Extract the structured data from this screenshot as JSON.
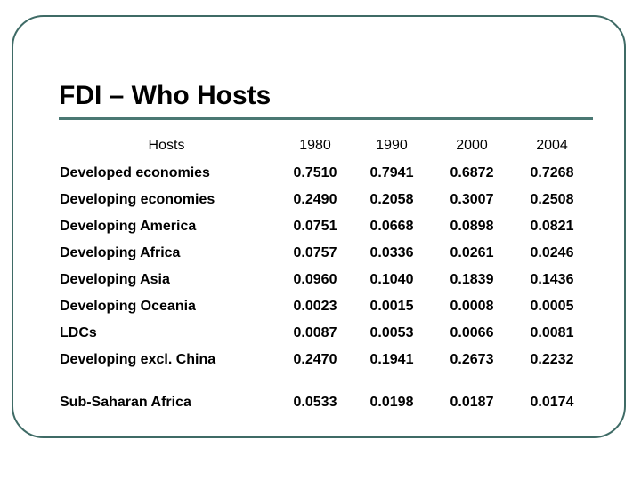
{
  "slide": {
    "title": "FDI – Who Hosts"
  },
  "table": {
    "header": [
      "Hosts",
      "1980",
      "1990",
      "2000",
      "2004"
    ],
    "rows": [
      {
        "label": "Developed economies",
        "values": [
          "0.7510",
          "0.7941",
          "0.6872",
          "0.7268"
        ]
      },
      {
        "label": "Developing economies",
        "values": [
          "0.2490",
          "0.2058",
          "0.3007",
          "0.2508"
        ]
      },
      {
        "label": "Developing America",
        "values": [
          "0.0751",
          "0.0668",
          "0.0898",
          "0.0821"
        ]
      },
      {
        "label": "Developing Africa",
        "values": [
          "0.0757",
          "0.0336",
          "0.0261",
          "0.0246"
        ]
      },
      {
        "label": "Developing Asia",
        "values": [
          "0.0960",
          "0.1040",
          "0.1839",
          "0.1436"
        ]
      },
      {
        "label": "Developing Oceania",
        "values": [
          "0.0023",
          "0.0015",
          "0.0008",
          "0.0005"
        ]
      },
      {
        "label": "LDCs",
        "values": [
          "0.0087",
          "0.0053",
          "0.0066",
          "0.0081"
        ]
      },
      {
        "label": "Developing excl. China",
        "values": [
          "0.2470",
          "0.1941",
          "0.2673",
          "0.2232"
        ]
      },
      {
        "label": "Sub-Saharan Africa",
        "values": [
          "0.0533",
          "0.0198",
          "0.0187",
          "0.0174"
        ]
      }
    ]
  }
}
